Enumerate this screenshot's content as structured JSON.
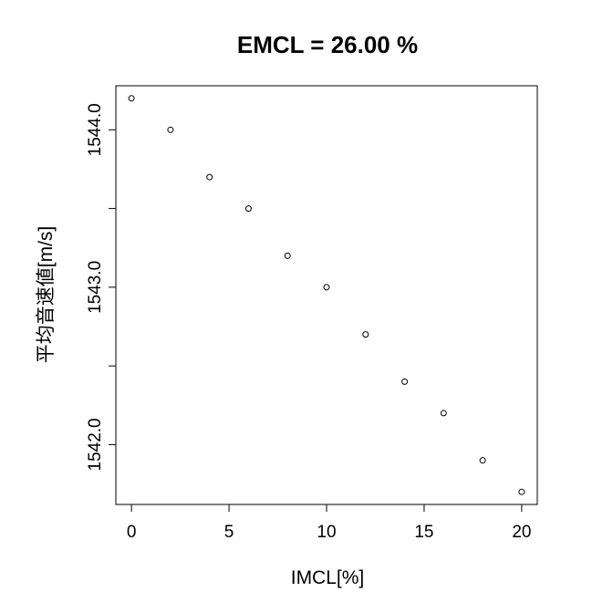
{
  "chart_data": {
    "type": "scatter",
    "title": "EMCL = 26.00 %",
    "xlabel": "IMCL[%]",
    "ylabel": "平均音速値[m/s]",
    "xlim": [
      -0.8,
      20.8
    ],
    "ylim": [
      1541.62,
      1544.28
    ],
    "xticks": [
      0,
      5,
      10,
      15,
      20
    ],
    "xtick_labels": [
      "0",
      "5",
      "10",
      "15",
      "20"
    ],
    "yticks": [
      1542.0,
      1542.5,
      1543.0,
      1543.5,
      1544.0
    ],
    "ytick_labels": [
      "1542.0",
      "",
      "1543.0",
      "",
      "1544.0"
    ],
    "grid": false,
    "marker": "open-circle",
    "x": [
      0,
      2,
      4,
      6,
      8,
      10,
      12,
      14,
      16,
      18,
      20
    ],
    "y": [
      1544.2,
      1544.0,
      1543.7,
      1543.5,
      1543.2,
      1543.0,
      1542.7,
      1542.4,
      1542.2,
      1541.9,
      1541.7
    ]
  }
}
